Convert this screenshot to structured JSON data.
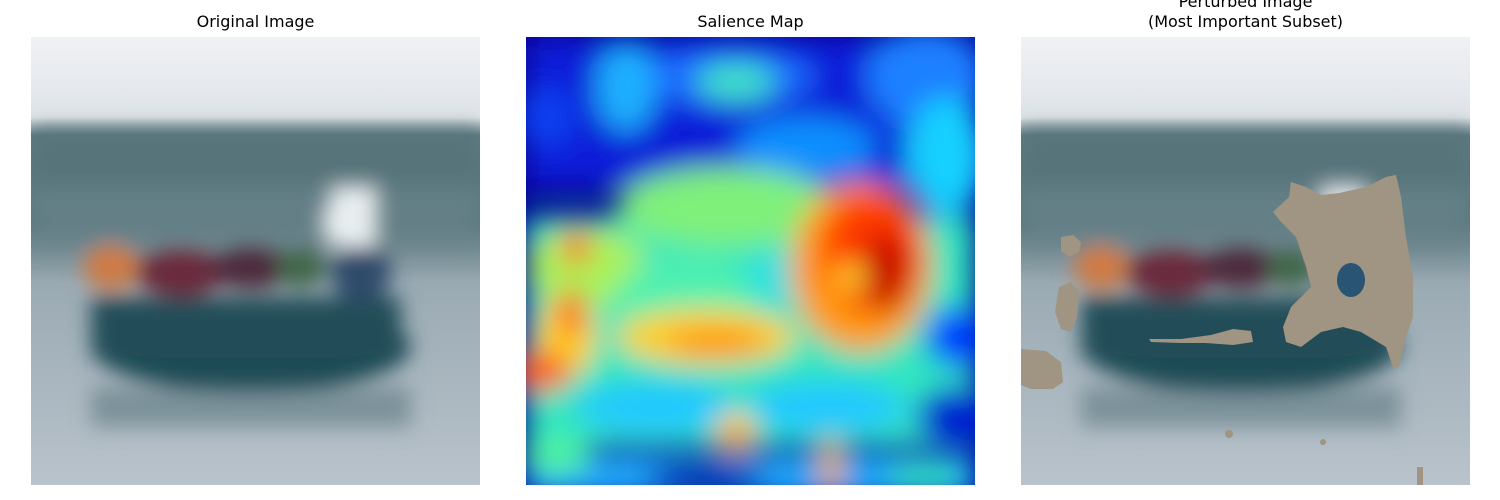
{
  "panels": [
    {
      "title": "Original Image"
    },
    {
      "title": "Salience Map"
    },
    {
      "title": "Perturbed Image\n(Most Important Subset)"
    }
  ],
  "colors": {
    "mask_fill": "#a09483",
    "sky": "#e9ecf0",
    "water": "#aab7c0",
    "hill": "#4f6b72",
    "boat_hull": "#1e4a54"
  }
}
